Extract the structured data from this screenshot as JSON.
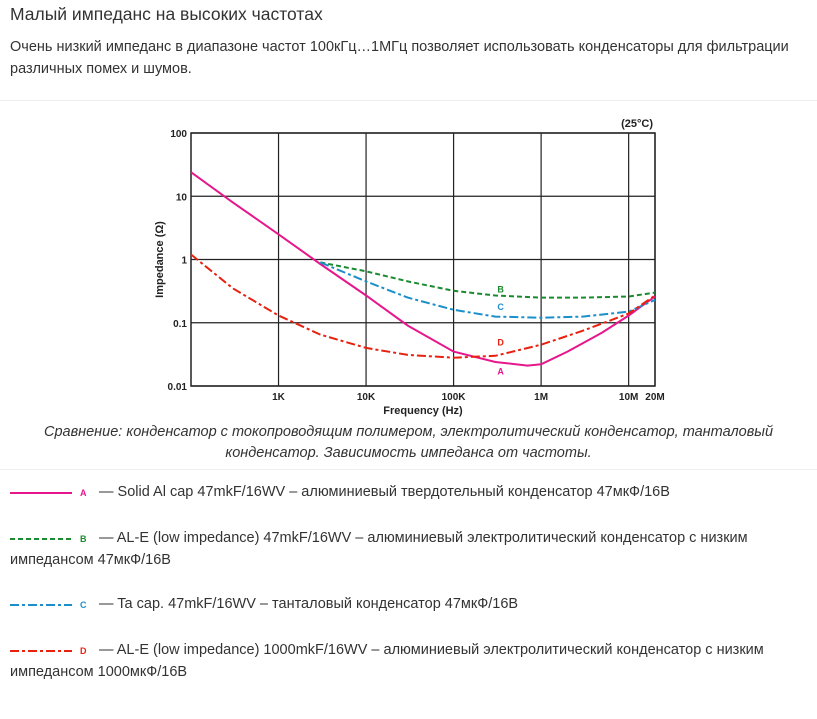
{
  "section": {
    "title": "Малый импеданс на высоких частотах",
    "intro": "Очень низкий импеданс в диапазоне частот 100кГц…1МГц позволяет использовать конденсаторы для фильтрации различных помех и шумов.",
    "caption": "Сравнение: конденсатор с токопроводящим полимером, электролитический конденсатор, танталовый конденсатор. Зависимость импеданса от частоты."
  },
  "chart_data": {
    "type": "line",
    "xlabel": "Frequency (Hz)",
    "ylabel": "Impedance (Ω)",
    "annotation": "(25°C)",
    "x_scale": "log",
    "y_scale": "log",
    "xlim": [
      100,
      20000000
    ],
    "ylim": [
      0.01,
      100
    ],
    "x_ticks": [
      {
        "value": 1000,
        "label": "1K"
      },
      {
        "value": 10000,
        "label": "10K"
      },
      {
        "value": 100000,
        "label": "100K"
      },
      {
        "value": 1000000,
        "label": "1M"
      },
      {
        "value": 10000000,
        "label": "10M"
      },
      {
        "value": 20000000,
        "label": "20M"
      }
    ],
    "y_ticks": [
      {
        "value": 100,
        "label": "100"
      },
      {
        "value": 10,
        "label": "10"
      },
      {
        "value": 1,
        "label": "1"
      },
      {
        "value": 0.1,
        "label": "0.1"
      },
      {
        "value": 0.01,
        "label": "0.01"
      }
    ],
    "grid": true,
    "series": [
      {
        "name": "A",
        "color": "#e6178c",
        "dash": "solid",
        "x": [
          100,
          300,
          1000,
          3000,
          10000,
          30000,
          100000,
          300000,
          700000,
          1000000,
          2000000,
          5000000,
          10000000,
          20000000
        ],
        "y": [
          24,
          8,
          2.5,
          0.85,
          0.27,
          0.09,
          0.035,
          0.024,
          0.021,
          0.022,
          0.035,
          0.07,
          0.13,
          0.26
        ]
      },
      {
        "name": "B",
        "color": "#1a8a2e",
        "dash": "dashed",
        "x": [
          3000,
          10000,
          30000,
          100000,
          300000,
          1000000,
          3000000,
          10000000,
          20000000
        ],
        "y": [
          0.9,
          0.65,
          0.45,
          0.32,
          0.27,
          0.25,
          0.25,
          0.26,
          0.3
        ]
      },
      {
        "name": "C",
        "color": "#1a8fc9",
        "dash": "dashdot",
        "x": [
          3000,
          10000,
          30000,
          100000,
          300000,
          1000000,
          3000000,
          10000000,
          20000000
        ],
        "y": [
          0.9,
          0.45,
          0.25,
          0.16,
          0.125,
          0.12,
          0.125,
          0.15,
          0.23
        ]
      },
      {
        "name": "D",
        "color": "#e8210f",
        "dash": "dashdot",
        "x": [
          100,
          300,
          1000,
          3000,
          10000,
          30000,
          100000,
          300000,
          1000000,
          3000000,
          10000000,
          20000000
        ],
        "y": [
          1.2,
          0.35,
          0.13,
          0.065,
          0.04,
          0.031,
          0.028,
          0.03,
          0.045,
          0.075,
          0.14,
          0.27
        ]
      }
    ],
    "series_labels": [
      "A",
      "B",
      "C",
      "D"
    ]
  },
  "legend": [
    {
      "key": "A",
      "color": "#e6178c",
      "dash": "solid",
      "text": "— Solid Al cap 47mkF/16WV – алюминиевый твердотельный конденсатор 47мкФ/16В"
    },
    {
      "key": "B",
      "color": "#1a8a2e",
      "dash": "dashed",
      "text": "— AL-E (low impedance) 47mkF/16WV – алюминиевый электролитический конденсатор с низким импедансом 47мкФ/16В"
    },
    {
      "key": "C",
      "color": "#1a8fc9",
      "dash": "dashdot",
      "text": "— Ta cap. 47mkF/16WV – танталовый конденсатор 47мкФ/16В"
    },
    {
      "key": "D",
      "color": "#e8210f",
      "dash": "dashdot",
      "text": "— AL-E (low impedance) 1000mkF/16WV – алюминиевый электролитический конденсатор с низким импедансом 1000мкФ/16В"
    }
  ]
}
